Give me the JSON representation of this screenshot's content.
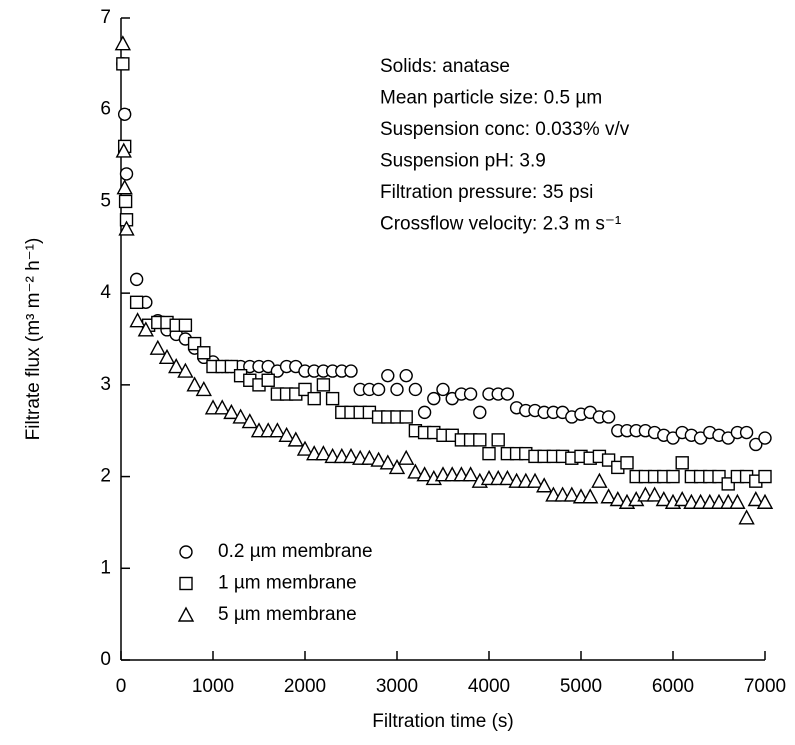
{
  "chart_data": {
    "type": "scatter",
    "xlabel": "Filtration time (s)",
    "ylabel": "Filtrate flux (m³ m⁻² h⁻¹)",
    "xlim": [
      0,
      7000
    ],
    "ylim": [
      0,
      7
    ],
    "xticks": [
      0,
      1000,
      2000,
      3000,
      4000,
      5000,
      6000,
      7000
    ],
    "yticks": [
      0,
      1,
      2,
      3,
      4,
      5,
      6,
      7
    ],
    "legend_position": "lower left",
    "annotations": [
      "Solids: anatase",
      "Mean particle size: 0.5 µm",
      "Suspension conc: 0.033% v/v",
      "Suspension pH: 3.9",
      "Filtration pressure: 35 psi",
      "Crossflow velocity: 2.3 m s⁻¹"
    ],
    "series": [
      {
        "name": "0.2 µm membrane",
        "color": "#000000",
        "marker": "circle",
        "x": [
          20,
          40,
          60,
          170,
          270,
          400,
          500,
          600,
          700,
          800,
          900,
          1000,
          1100,
          1200,
          1300,
          1400,
          1500,
          1600,
          1700,
          1800,
          1900,
          2000,
          2100,
          2200,
          2300,
          2400,
          2500,
          2600,
          2700,
          2800,
          2900,
          3000,
          3100,
          3200,
          3300,
          3400,
          3500,
          3600,
          3700,
          3800,
          3900,
          4000,
          4100,
          4200,
          4300,
          4400,
          4500,
          4600,
          4700,
          4800,
          4900,
          5000,
          5100,
          5200,
          5300,
          5400,
          5500,
          5600,
          5700,
          5800,
          5900,
          6000,
          6100,
          6200,
          6300,
          6400,
          6500,
          6600,
          6700,
          6800,
          6900,
          7000
        ],
        "values": [
          6.5,
          5.95,
          5.3,
          4.15,
          3.9,
          3.7,
          3.6,
          3.55,
          3.5,
          3.4,
          3.3,
          3.25,
          3.2,
          3.2,
          3.2,
          3.2,
          3.2,
          3.2,
          3.15,
          3.2,
          3.2,
          3.15,
          3.15,
          3.15,
          3.15,
          3.15,
          3.15,
          2.95,
          2.95,
          2.95,
          3.1,
          2.95,
          3.1,
          2.95,
          2.7,
          2.85,
          2.95,
          2.85,
          2.9,
          2.9,
          2.7,
          2.9,
          2.9,
          2.9,
          2.75,
          2.72,
          2.72,
          2.7,
          2.7,
          2.7,
          2.65,
          2.68,
          2.7,
          2.65,
          2.65,
          2.5,
          2.5,
          2.5,
          2.5,
          2.48,
          2.45,
          2.42,
          2.48,
          2.45,
          2.42,
          2.48,
          2.45,
          2.42,
          2.48,
          2.48,
          2.35,
          2.42
        ]
      },
      {
        "name": "1 µm membrane",
        "color": "#000000",
        "marker": "square",
        "x": [
          20,
          40,
          50,
          60,
          170,
          300,
          400,
          500,
          600,
          700,
          800,
          900,
          1000,
          1100,
          1200,
          1300,
          1400,
          1500,
          1600,
          1700,
          1800,
          1900,
          2000,
          2100,
          2200,
          2300,
          2400,
          2500,
          2600,
          2700,
          2800,
          2900,
          3000,
          3100,
          3200,
          3300,
          3400,
          3500,
          3600,
          3700,
          3800,
          3900,
          4000,
          4100,
          4200,
          4300,
          4400,
          4500,
          4600,
          4700,
          4800,
          4900,
          5000,
          5100,
          5200,
          5300,
          5400,
          5500,
          5600,
          5700,
          5800,
          5900,
          6000,
          6100,
          6200,
          6300,
          6400,
          6500,
          6600,
          6700,
          6800,
          6900,
          7000
        ],
        "values": [
          6.5,
          5.6,
          5.0,
          4.8,
          3.9,
          3.65,
          3.68,
          3.68,
          3.65,
          3.65,
          3.45,
          3.35,
          3.2,
          3.2,
          3.2,
          3.1,
          3.05,
          3.0,
          3.05,
          2.9,
          2.9,
          2.9,
          2.95,
          2.85,
          3.0,
          2.85,
          2.7,
          2.7,
          2.7,
          2.7,
          2.65,
          2.65,
          2.65,
          2.65,
          2.5,
          2.48,
          2.48,
          2.45,
          2.45,
          2.4,
          2.4,
          2.4,
          2.25,
          2.4,
          2.25,
          2.25,
          2.25,
          2.22,
          2.22,
          2.22,
          2.22,
          2.2,
          2.22,
          2.2,
          2.22,
          2.18,
          2.1,
          2.15,
          2.0,
          2.0,
          2.0,
          2.0,
          2.0,
          2.15,
          2.0,
          2.0,
          2.0,
          2.0,
          1.92,
          2.0,
          2.0,
          1.95,
          2.0
        ]
      },
      {
        "name": "5 µm membrane",
        "color": "#000000",
        "marker": "triangle",
        "x": [
          20,
          30,
          40,
          60,
          180,
          270,
          400,
          500,
          600,
          700,
          800,
          900,
          1000,
          1100,
          1200,
          1300,
          1400,
          1500,
          1600,
          1700,
          1800,
          1900,
          2000,
          2100,
          2200,
          2300,
          2400,
          2500,
          2600,
          2700,
          2800,
          2900,
          3000,
          3100,
          3200,
          3300,
          3400,
          3500,
          3600,
          3700,
          3800,
          3900,
          4000,
          4100,
          4200,
          4300,
          4400,
          4500,
          4600,
          4700,
          4800,
          4900,
          5000,
          5100,
          5200,
          5300,
          5400,
          5500,
          5600,
          5700,
          5800,
          5900,
          6000,
          6100,
          6200,
          6300,
          6400,
          6500,
          6600,
          6700,
          6800,
          6900,
          7000
        ],
        "values": [
          6.72,
          5.55,
          5.15,
          4.7,
          3.7,
          3.6,
          3.4,
          3.3,
          3.2,
          3.15,
          3.0,
          2.95,
          2.75,
          2.75,
          2.7,
          2.65,
          2.6,
          2.5,
          2.5,
          2.5,
          2.45,
          2.4,
          2.3,
          2.25,
          2.25,
          2.22,
          2.22,
          2.22,
          2.2,
          2.2,
          2.18,
          2.15,
          2.1,
          2.2,
          2.05,
          2.02,
          1.98,
          2.02,
          2.02,
          2.02,
          2.02,
          1.95,
          1.98,
          1.98,
          1.98,
          1.95,
          1.95,
          1.95,
          1.9,
          1.8,
          1.8,
          1.8,
          1.78,
          1.78,
          1.95,
          1.78,
          1.75,
          1.72,
          1.75,
          1.8,
          1.8,
          1.75,
          1.72,
          1.75,
          1.72,
          1.72,
          1.72,
          1.72,
          1.72,
          1.72,
          1.55,
          1.75,
          1.72
        ]
      }
    ]
  }
}
